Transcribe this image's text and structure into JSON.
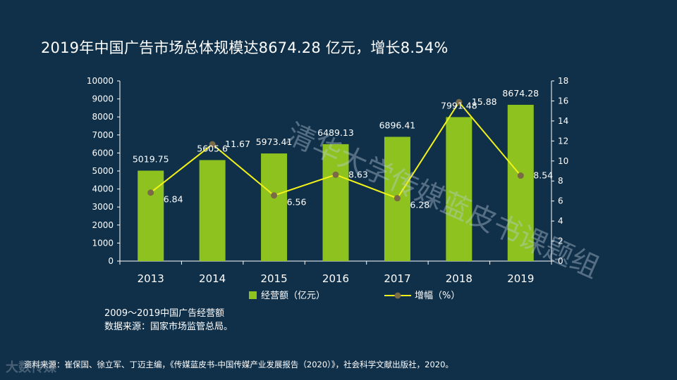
{
  "title": "2019年中国广告市场总体规模达8674.28 亿元，增长8.54%",
  "caption": {
    "line1": "2009～2019中国广告经营额",
    "line2": "数据来源：国家市场监管总局。"
  },
  "source": "资料来源：崔保国、徐立军、丁迈主编，《传媒蓝皮书-中国传媒产业发展报告（2020）》，社会科学文献出版社，2020。",
  "watermark": "清华大学传媒蓝皮书课题组",
  "brand": "大数传媒",
  "colors": {
    "background": "#103049",
    "bar": "#8DC21F",
    "line": "#F2F21A",
    "marker": "#7A6A45",
    "text": "#ffffff"
  },
  "chart_data": {
    "type": "bar",
    "categories": [
      "2013",
      "2014",
      "2015",
      "2016",
      "2017",
      "2018",
      "2019"
    ],
    "series": [
      {
        "name": "经营额（亿元）",
        "type": "bar",
        "axis": "left",
        "values": [
          5019.75,
          5605.6,
          5973.41,
          6489.13,
          6896.41,
          7991.48,
          8674.28
        ],
        "labels": [
          "5019.75",
          "5605.6",
          "5973.41",
          "6489.13",
          "6896.41",
          "7991.48",
          "8674.28"
        ]
      },
      {
        "name": "增幅（%）",
        "type": "line",
        "axis": "right",
        "values": [
          6.84,
          11.67,
          6.56,
          8.63,
          6.28,
          15.88,
          8.54
        ],
        "labels": [
          "6.84",
          "11.67",
          "6.56",
          "8.63",
          "6.28",
          "15.88",
          "8.54"
        ]
      }
    ],
    "y_left": {
      "min": 0,
      "max": 10000,
      "step": 1000,
      "ticks": [
        "0",
        "1000",
        "2000",
        "3000",
        "4000",
        "5000",
        "6000",
        "7000",
        "8000",
        "9000",
        "10000"
      ]
    },
    "y_right": {
      "min": 0,
      "max": 18,
      "step": 2,
      "ticks": [
        "0",
        "2",
        "4",
        "6",
        "8",
        "10",
        "12",
        "14",
        "16",
        "18"
      ]
    },
    "grid": false,
    "legend": "bottom"
  }
}
